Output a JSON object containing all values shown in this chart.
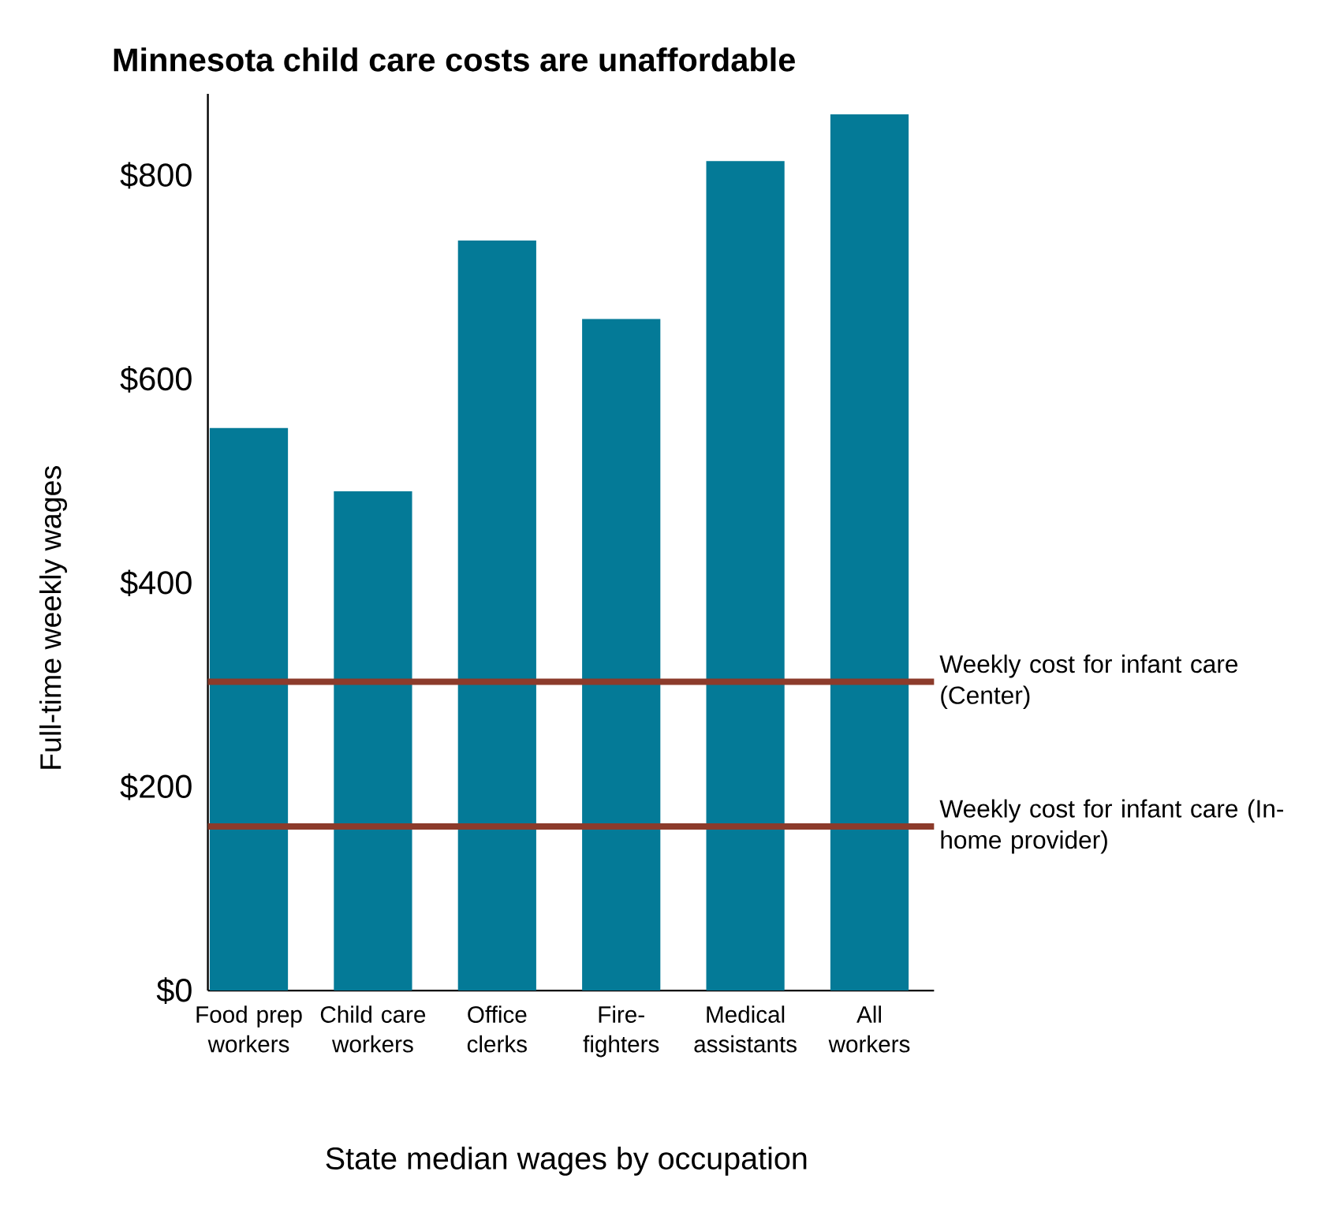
{
  "chart_data": {
    "type": "bar",
    "title": "Minnesota child care costs are unaffordable",
    "xlabel": "State median wages by occupation",
    "ylabel": "Full-time weekly wages",
    "categories": [
      "Food prep workers",
      "Child care workers",
      "Office clerks",
      "Fire-fighters",
      "Medical assistants",
      "All workers"
    ],
    "values": [
      552,
      490,
      736,
      659,
      814,
      860
    ],
    "color": "#047a97",
    "ylim": [
      0,
      880
    ],
    "yticks": [
      {
        "value": 0,
        "label": "$0"
      },
      {
        "value": 200,
        "label": "$200"
      },
      {
        "value": 400,
        "label": "$400"
      },
      {
        "value": 600,
        "label": "$600"
      },
      {
        "value": 800,
        "label": "$800"
      }
    ],
    "ref_lines": [
      {
        "axis": "y",
        "value": 303,
        "label": "Weekly cost for infant care (Center)",
        "color": "#8c3b2b"
      },
      {
        "axis": "y",
        "value": 161,
        "label": "Weekly cost for infant care (In-home provider)",
        "color": "#8c3b2b"
      }
    ]
  }
}
